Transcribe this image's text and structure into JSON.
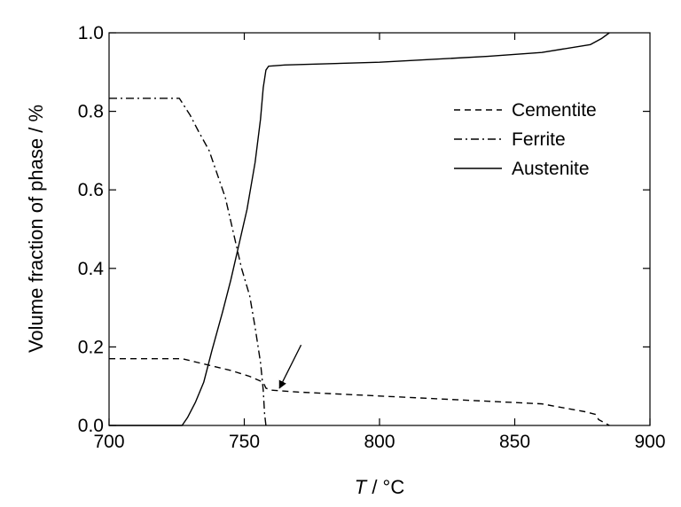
{
  "chart_data": {
    "type": "line",
    "xlabel_var": "T",
    "xlabel_unit": " / °C",
    "ylabel": "Volume fraction of phase / %",
    "xlim": [
      700,
      900
    ],
    "ylim": [
      0.0,
      1.0
    ],
    "x_ticks": [
      "700",
      "750",
      "800",
      "850",
      "900"
    ],
    "y_ticks": [
      "0.0",
      "0.2",
      "0.4",
      "0.6",
      "0.8",
      "1.0"
    ],
    "grid": false,
    "legend_position": "top-right",
    "series": [
      {
        "name": "Cementite",
        "style": "dashed",
        "points": [
          [
            700,
            0.17
          ],
          [
            727,
            0.17
          ],
          [
            733,
            0.16
          ],
          [
            745,
            0.14
          ],
          [
            752,
            0.125
          ],
          [
            757,
            0.11
          ],
          [
            758,
            0.095
          ],
          [
            760,
            0.09
          ],
          [
            770,
            0.085
          ],
          [
            800,
            0.075
          ],
          [
            830,
            0.065
          ],
          [
            860,
            0.055
          ],
          [
            876,
            0.035
          ],
          [
            880,
            0.028
          ],
          [
            881,
            0.015
          ],
          [
            885,
            0.0
          ]
        ]
      },
      {
        "name": "Ferrite",
        "style": "dashdot",
        "points": [
          [
            700,
            0.833
          ],
          [
            726,
            0.833
          ],
          [
            730,
            0.79
          ],
          [
            733,
            0.75
          ],
          [
            737,
            0.7
          ],
          [
            740,
            0.64
          ],
          [
            743,
            0.58
          ],
          [
            745,
            0.52
          ],
          [
            747,
            0.46
          ],
          [
            749,
            0.4
          ],
          [
            752,
            0.33
          ],
          [
            754,
            0.25
          ],
          [
            756,
            0.16
          ],
          [
            757,
            0.09
          ],
          [
            757.5,
            0.03
          ],
          [
            758,
            0.0
          ]
        ]
      },
      {
        "name": "Austenite",
        "style": "solid",
        "points": [
          [
            700,
            0.0
          ],
          [
            727,
            0.0
          ],
          [
            729,
            0.02
          ],
          [
            732,
            0.06
          ],
          [
            735,
            0.11
          ],
          [
            738,
            0.19
          ],
          [
            742,
            0.29
          ],
          [
            745,
            0.37
          ],
          [
            748,
            0.46
          ],
          [
            751,
            0.55
          ],
          [
            754,
            0.67
          ],
          [
            756,
            0.78
          ],
          [
            757,
            0.86
          ],
          [
            758,
            0.905
          ],
          [
            759,
            0.915
          ],
          [
            765,
            0.918
          ],
          [
            800,
            0.925
          ],
          [
            840,
            0.94
          ],
          [
            860,
            0.95
          ],
          [
            878,
            0.97
          ],
          [
            882,
            0.985
          ],
          [
            885,
            1.0
          ]
        ]
      }
    ],
    "annotations": [
      {
        "type": "arrow",
        "from": [
          771,
          0.205
        ],
        "to": [
          763,
          0.095
        ]
      }
    ]
  }
}
